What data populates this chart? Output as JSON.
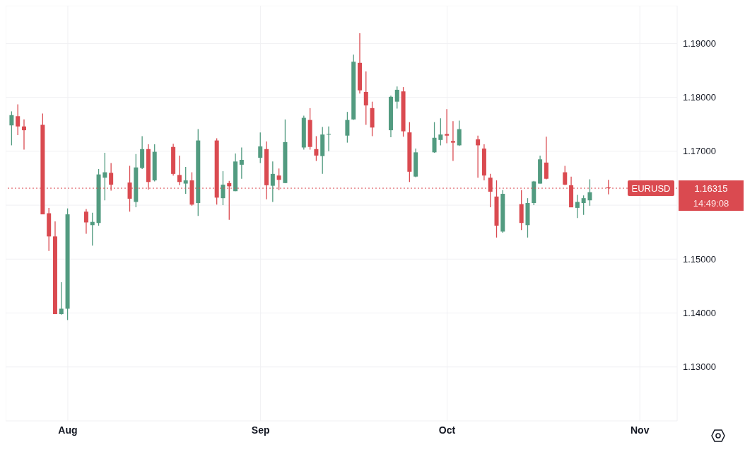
{
  "chart_data": {
    "type": "candlestick",
    "x": [
      "--07-23",
      "--07-24",
      "--07-25",
      "--07-28",
      "--07-29",
      "--07-30",
      "--07-31",
      "--08-01",
      "--08-04",
      "--08-05",
      "--08-06",
      "--08-07",
      "--08-08",
      "--08-11",
      "--08-12",
      "--08-13",
      "--08-14",
      "--08-15",
      "--08-18",
      "--08-19",
      "--08-20",
      "--08-21",
      "--08-22",
      "--08-25",
      "--08-26",
      "--08-27",
      "--08-28",
      "--08-29",
      "--09-01",
      "--09-02",
      "--09-03",
      "--09-04",
      "--09-05",
      "--09-08",
      "--09-09",
      "--09-10",
      "--09-11",
      "--09-12",
      "--09-15",
      "--09-16",
      "--09-17",
      "--09-18",
      "--09-19",
      "--09-22",
      "--09-23",
      "--09-24",
      "--09-25",
      "--09-26",
      "--09-29",
      "--09-30",
      "--10-01",
      "--10-02",
      "--10-03",
      "--10-06",
      "--10-07",
      "--10-08",
      "--10-09",
      "--10-10",
      "--10-13",
      "--10-14",
      "--10-15",
      "--10-16",
      "--10-17",
      "--10-20",
      "--10-21",
      "--10-22",
      "--10-23",
      "--10-24",
      "--10-27"
    ],
    "ohlc": [
      [
        1.1748,
        1.1774,
        1.1711,
        1.1767
      ],
      [
        1.1765,
        1.1787,
        1.173,
        1.1746
      ],
      [
        1.1746,
        1.1759,
        1.1703,
        1.1739
      ],
      [
        1.1749,
        1.177,
        1.1583,
        1.1583
      ],
      [
        1.1585,
        1.1595,
        1.1515,
        1.1542
      ],
      [
        1.1542,
        1.157,
        1.1398,
        1.1398
      ],
      [
        1.1398,
        1.1457,
        1.1397,
        1.1408
      ],
      [
        1.1408,
        1.1594,
        1.1387,
        1.1583
      ],
      [
        1.1588,
        1.1593,
        1.1547,
        1.1568
      ],
      [
        1.1563,
        1.1586,
        1.1525,
        1.1569
      ],
      [
        1.1567,
        1.1667,
        1.1562,
        1.1657
      ],
      [
        1.1651,
        1.1697,
        1.1609,
        1.1661
      ],
      [
        1.166,
        1.1678,
        1.1627,
        1.1638
      ],
      [
        1.1642,
        1.1673,
        1.1588,
        1.1612
      ],
      [
        1.1606,
        1.1695,
        1.1596,
        1.167
      ],
      [
        1.1669,
        1.1728,
        1.1667,
        1.1704
      ],
      [
        1.1704,
        1.1713,
        1.1629,
        1.1643
      ],
      [
        1.1646,
        1.1713,
        1.1644,
        1.1699
      ],
      [
        1.1708,
        1.1714,
        1.1655,
        1.1658
      ],
      [
        1.1656,
        1.1692,
        1.1637,
        1.1643
      ],
      [
        1.164,
        1.1671,
        1.1621,
        1.1646
      ],
      [
        1.1646,
        1.1661,
        1.1599,
        1.1601
      ],
      [
        1.1604,
        1.1741,
        1.158,
        1.172
      ],
      [
        1.172,
        1.1724,
        1.1601,
        1.1614
      ],
      [
        1.1613,
        1.1663,
        1.16,
        1.1638
      ],
      [
        1.1641,
        1.1645,
        1.1573,
        1.1635
      ],
      [
        1.1626,
        1.1696,
        1.1626,
        1.1681
      ],
      [
        1.1675,
        1.1707,
        1.1649,
        1.1684
      ],
      [
        1.1688,
        1.1735,
        1.1678,
        1.1709
      ],
      [
        1.1704,
        1.1718,
        1.1611,
        1.1637
      ],
      [
        1.1636,
        1.1681,
        1.1606,
        1.1658
      ],
      [
        1.1655,
        1.1668,
        1.1628,
        1.1647
      ],
      [
        1.1641,
        1.1759,
        1.1641,
        1.1717
      ],
      [
        1.1707,
        1.1766,
        1.1703,
        1.1762
      ],
      [
        1.1758,
        1.178,
        1.1703,
        1.1708
      ],
      [
        1.1704,
        1.1728,
        1.1682,
        1.1692
      ],
      [
        1.1691,
        1.1745,
        1.1658,
        1.1731
      ],
      [
        1.1731,
        1.1746,
        1.17,
        1.1732
      ],
      [
        1.1729,
        1.1773,
        1.1716,
        1.1758
      ],
      [
        1.1759,
        1.1879,
        1.1758,
        1.1866
      ],
      [
        1.1864,
        1.1919,
        1.1807,
        1.1813
      ],
      [
        1.181,
        1.1848,
        1.1749,
        1.1785
      ],
      [
        1.178,
        1.1792,
        1.1728,
        1.1744
      ],
      [
        1.1739,
        1.1803,
        1.1726,
        1.1801
      ],
      [
        1.1792,
        1.182,
        1.1779,
        1.1814
      ],
      [
        1.1811,
        1.1819,
        1.1727,
        1.1737
      ],
      [
        1.1735,
        1.1754,
        1.1643,
        1.1662
      ],
      [
        1.1653,
        1.1705,
        1.1652,
        1.1698
      ],
      [
        1.1698,
        1.1754,
        1.1697,
        1.1725
      ],
      [
        1.1721,
        1.1761,
        1.1711,
        1.1731
      ],
      [
        1.1732,
        1.1778,
        1.1715,
        1.1729
      ],
      [
        1.1719,
        1.1756,
        1.1682,
        1.1716
      ],
      [
        1.1711,
        1.1757,
        1.171,
        1.1741
      ],
      [
        1.1722,
        1.1729,
        1.1651,
        1.1711
      ],
      [
        1.1705,
        1.1713,
        1.1646,
        1.1655
      ],
      [
        1.1651,
        1.1658,
        1.1596,
        1.1625
      ],
      [
        1.1616,
        1.1646,
        1.154,
        1.1562
      ],
      [
        1.1551,
        1.1628,
        1.1549,
        1.1621
      ],
      [
        1.1602,
        1.1628,
        1.1554,
        1.1567
      ],
      [
        1.1563,
        1.1613,
        1.154,
        1.1604
      ],
      [
        1.1604,
        1.1645,
        1.16,
        1.1644
      ],
      [
        1.164,
        1.1692,
        1.164,
        1.1685
      ],
      [
        1.1679,
        1.1727,
        1.1648,
        1.1649
      ],
      [
        1.1661,
        1.1673,
        1.1637,
        1.1638
      ],
      [
        1.1637,
        1.1653,
        1.1596,
        1.1596
      ],
      [
        1.1595,
        1.1619,
        1.1576,
        1.1606
      ],
      [
        1.1604,
        1.1618,
        1.1582,
        1.1613
      ],
      [
        1.1609,
        1.1648,
        1.1599,
        1.1624
      ],
      [
        1.1633,
        1.1647,
        1.162,
        1.16315
      ]
    ],
    "colors": [
      "#529b80",
      "#da4a50",
      "#da4a50",
      "#da4a50",
      "#da4a50",
      "#da4a50",
      "#529b80",
      "#529b80",
      "#da4a50",
      "#529b80",
      "#529b80",
      "#529b80",
      "#da4a50",
      "#da4a50",
      "#529b80",
      "#529b80",
      "#da4a50",
      "#529b80",
      "#da4a50",
      "#da4a50",
      "#529b80",
      "#da4a50",
      "#529b80",
      "#da4a50",
      "#529b80",
      "#da4a50",
      "#529b80",
      "#529b80",
      "#529b80",
      "#da4a50",
      "#529b80",
      "#da4a50",
      "#529b80",
      "#529b80",
      "#da4a50",
      "#da4a50",
      "#529b80",
      "#529b80",
      "#529b80",
      "#529b80",
      "#da4a50",
      "#da4a50",
      "#da4a50",
      "#529b80",
      "#529b80",
      "#da4a50",
      "#da4a50",
      "#529b80",
      "#529b80",
      "#529b80",
      "#da4a50",
      "#da4a50",
      "#529b80",
      "#da4a50",
      "#da4a50",
      "#da4a50",
      "#da4a50",
      "#529b80",
      "#da4a50",
      "#529b80",
      "#529b80",
      "#529b80",
      "#da4a50",
      "#da4a50",
      "#da4a50",
      "#529b80",
      "#529b80",
      "#529b80",
      "#da4a50"
    ],
    "xlim": [
      "--07-22",
      "--11-07"
    ],
    "xticks": [
      {
        "value": "--08-01",
        "label": "Aug"
      },
      {
        "value": "--09-01",
        "label": "Sep"
      },
      {
        "value": "--10-01",
        "label": "Oct"
      },
      {
        "value": "--11-01",
        "label": "Nov"
      }
    ],
    "ylim": [
      1.12,
      1.197
    ],
    "yticks": [
      {
        "value": 1.13,
        "label": "1.13000"
      },
      {
        "value": 1.14,
        "label": "1.14000"
      },
      {
        "value": 1.15,
        "label": "1.15000"
      },
      {
        "value": 1.16,
        "label": null
      },
      {
        "value": 1.17,
        "label": "1.17000"
      },
      {
        "value": 1.18,
        "label": "1.18000"
      },
      {
        "value": 1.19,
        "label": "1.19000"
      }
    ],
    "grid": true,
    "ref_lines": [
      {
        "axis": "y",
        "value": 1.16315,
        "label": "EURUSD",
        "color": "#da4a50",
        "line_style": "dotted"
      }
    ],
    "annotations": [
      "1.16315",
      "14:49:08"
    ]
  }
}
